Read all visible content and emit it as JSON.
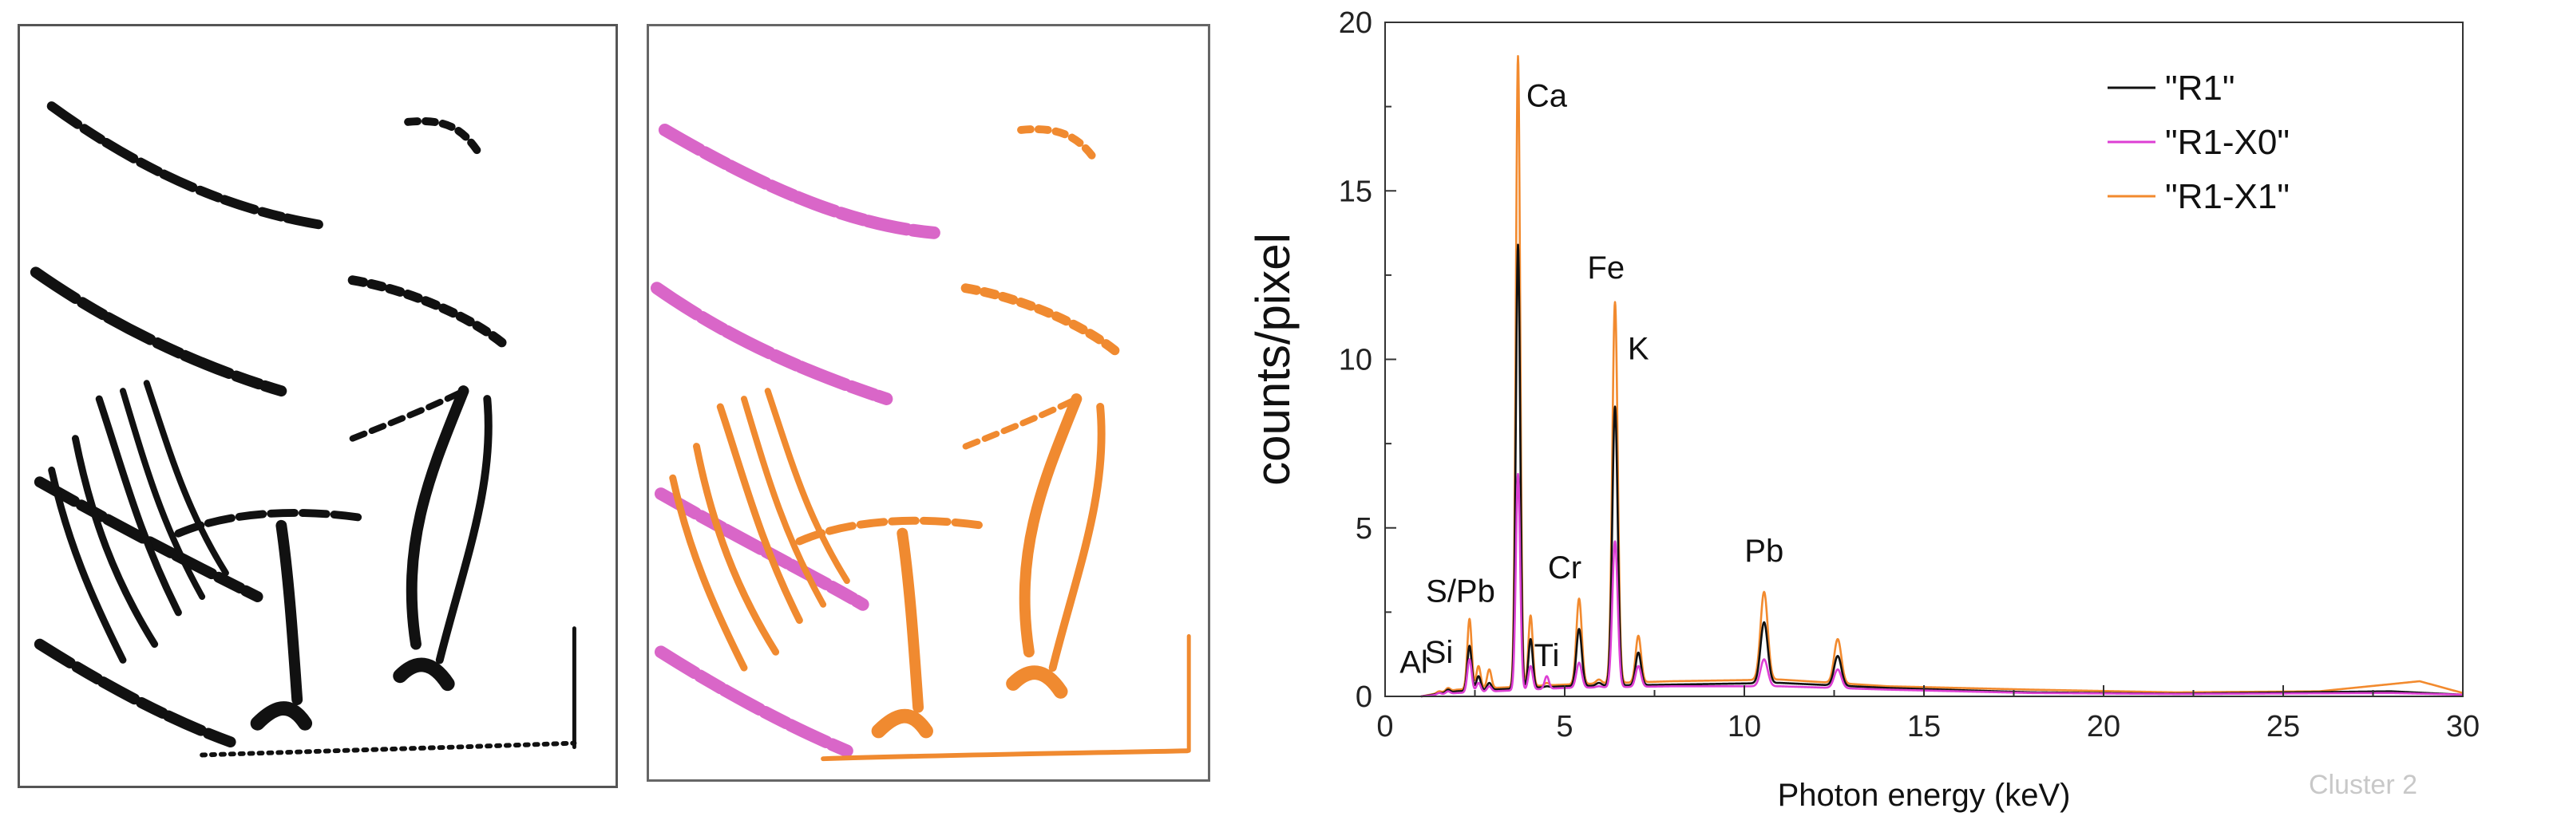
{
  "left_image": {
    "name": "xrf-map-grayscale",
    "colors": {
      "ink": "#111111"
    }
  },
  "middle_image": {
    "name": "xrf-map-clustered",
    "colors": {
      "cluster_x0": "#d966c8",
      "cluster_x1": "#f08a30"
    }
  },
  "chart_data": {
    "type": "line",
    "xlabel": "Photon energy (keV)",
    "ylabel": "counts/pixel",
    "xlim": [
      0,
      30
    ],
    "ylim": [
      0,
      20
    ],
    "xticks": [
      0,
      5,
      10,
      15,
      20,
      25,
      30
    ],
    "yticks": [
      0,
      5,
      10,
      15,
      20
    ],
    "grid": false,
    "legend_position": "top-right",
    "watermark": "Cluster 2",
    "series": [
      {
        "name": "\"R1\"",
        "color": "#111111",
        "peaks": [
          [
            1.5,
            0.1
          ],
          [
            1.75,
            0.2
          ],
          [
            2.35,
            1.5
          ],
          [
            2.6,
            0.6
          ],
          [
            2.9,
            0.4
          ],
          [
            3.7,
            13.4
          ],
          [
            4.05,
            1.7
          ],
          [
            4.5,
            0.3
          ],
          [
            5.4,
            2.0
          ],
          [
            5.95,
            0.4
          ],
          [
            6.4,
            8.6
          ],
          [
            7.05,
            1.3
          ],
          [
            9.2,
            0.2
          ],
          [
            10.55,
            2.2
          ],
          [
            12.6,
            1.2
          ],
          [
            14.8,
            0.1
          ]
        ],
        "baseline": [
          [
            1.0,
            0.0
          ],
          [
            2.0,
            0.15
          ],
          [
            5.0,
            0.3
          ],
          [
            8.0,
            0.35
          ],
          [
            11.0,
            0.4
          ],
          [
            14.0,
            0.25
          ],
          [
            18.0,
            0.12
          ],
          [
            22.0,
            0.08
          ],
          [
            28.0,
            0.15
          ],
          [
            30.0,
            0.05
          ]
        ]
      },
      {
        "name": "\"R1-X0\"",
        "color": "#dd3fd4",
        "peaks": [
          [
            1.5,
            0.1
          ],
          [
            1.75,
            0.15
          ],
          [
            2.35,
            1.1
          ],
          [
            2.6,
            0.4
          ],
          [
            2.9,
            0.3
          ],
          [
            3.7,
            6.6
          ],
          [
            4.05,
            0.9
          ],
          [
            4.5,
            0.6
          ],
          [
            5.4,
            1.0
          ],
          [
            5.95,
            0.3
          ],
          [
            6.4,
            4.6
          ],
          [
            7.05,
            0.9
          ],
          [
            9.2,
            0.15
          ],
          [
            10.55,
            1.1
          ],
          [
            12.6,
            0.8
          ],
          [
            14.8,
            0.1
          ]
        ],
        "baseline": [
          [
            1.0,
            0.0
          ],
          [
            2.0,
            0.1
          ],
          [
            5.0,
            0.25
          ],
          [
            8.0,
            0.3
          ],
          [
            11.0,
            0.3
          ],
          [
            14.0,
            0.2
          ],
          [
            18.0,
            0.1
          ],
          [
            22.0,
            0.07
          ],
          [
            28.0,
            0.1
          ],
          [
            30.0,
            0.05
          ]
        ]
      },
      {
        "name": "\"R1-X1\"",
        "color": "#f28a2e",
        "peaks": [
          [
            1.5,
            0.15
          ],
          [
            1.75,
            0.25
          ],
          [
            2.35,
            2.3
          ],
          [
            2.6,
            0.9
          ],
          [
            2.9,
            0.8
          ],
          [
            3.7,
            19.0
          ],
          [
            4.05,
            2.4
          ],
          [
            4.5,
            0.4
          ],
          [
            5.4,
            2.9
          ],
          [
            5.95,
            0.5
          ],
          [
            6.4,
            11.7
          ],
          [
            7.05,
            1.8
          ],
          [
            9.2,
            0.25
          ],
          [
            10.55,
            3.1
          ],
          [
            12.6,
            1.7
          ],
          [
            14.8,
            0.15
          ]
        ],
        "baseline": [
          [
            1.0,
            0.0
          ],
          [
            2.0,
            0.2
          ],
          [
            5.0,
            0.35
          ],
          [
            8.0,
            0.45
          ],
          [
            11.0,
            0.5
          ],
          [
            14.0,
            0.3
          ],
          [
            18.0,
            0.2
          ],
          [
            22.0,
            0.12
          ],
          [
            26.0,
            0.15
          ],
          [
            28.8,
            0.45
          ],
          [
            30.0,
            0.1
          ]
        ]
      }
    ],
    "annotations": [
      {
        "text": "Ca",
        "x": 4.5,
        "y": 17.5
      },
      {
        "text": "Fe",
        "x": 6.15,
        "y": 12.4
      },
      {
        "text": "K",
        "x": 7.05,
        "y": 10.0
      },
      {
        "text": "Cr",
        "x": 5.0,
        "y": 3.5
      },
      {
        "text": "Pb",
        "x": 10.55,
        "y": 4.0
      },
      {
        "text": "S/Pb",
        "x": 2.1,
        "y": 2.8
      },
      {
        "text": "Ti",
        "x": 4.5,
        "y": 0.9
      },
      {
        "text": "Si",
        "x": 1.5,
        "y": 1.0
      },
      {
        "text": "Al",
        "x": 0.8,
        "y": 0.7
      }
    ]
  }
}
